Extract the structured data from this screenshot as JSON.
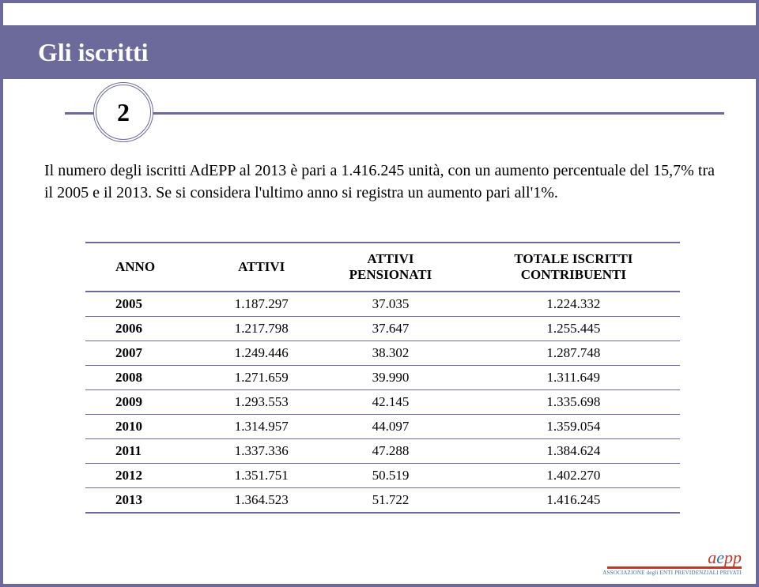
{
  "header": {
    "title": "Gli iscritti"
  },
  "badge": {
    "number": "2"
  },
  "body": {
    "text": "Il numero degli iscritti AdEPP al 2013 è pari a 1.416.245 unità, con un aumento percentuale del 15,7% tra il 2005 e il 2013. Se si considera l'ultimo anno si registra un aumento pari all'1%."
  },
  "table": {
    "columns": [
      "ANNO",
      "ATTIVI",
      "ATTIVI PENSIONATI",
      "TOTALE ISCRITTI CONTRIBUENTI"
    ],
    "rows": [
      [
        "2005",
        "1.187.297",
        "37.035",
        "1.224.332"
      ],
      [
        "2006",
        "1.217.798",
        "37.647",
        "1.255.445"
      ],
      [
        "2007",
        "1.249.446",
        "38.302",
        "1.287.748"
      ],
      [
        "2008",
        "1.271.659",
        "39.990",
        "1.311.649"
      ],
      [
        "2009",
        "1.293.553",
        "42.145",
        "1.335.698"
      ],
      [
        "2010",
        "1.314.957",
        "44.097",
        "1.359.054"
      ],
      [
        "2011",
        "1.337.336",
        "47.288",
        "1.384.624"
      ],
      [
        "2012",
        "1.351.751",
        "50.519",
        "1.402.270"
      ],
      [
        "2013",
        "1.364.523",
        "51.722",
        "1.416.245"
      ]
    ]
  },
  "logo": {
    "brand_a": "a",
    "brand_e": "e",
    "brand_pp": "pp",
    "sub": "ASSOCIAZIONE degli ENTI PREVIDENZIALI PRIVATI"
  },
  "colors": {
    "band": "#6b6a9b",
    "rule": "#6b6a9b"
  }
}
